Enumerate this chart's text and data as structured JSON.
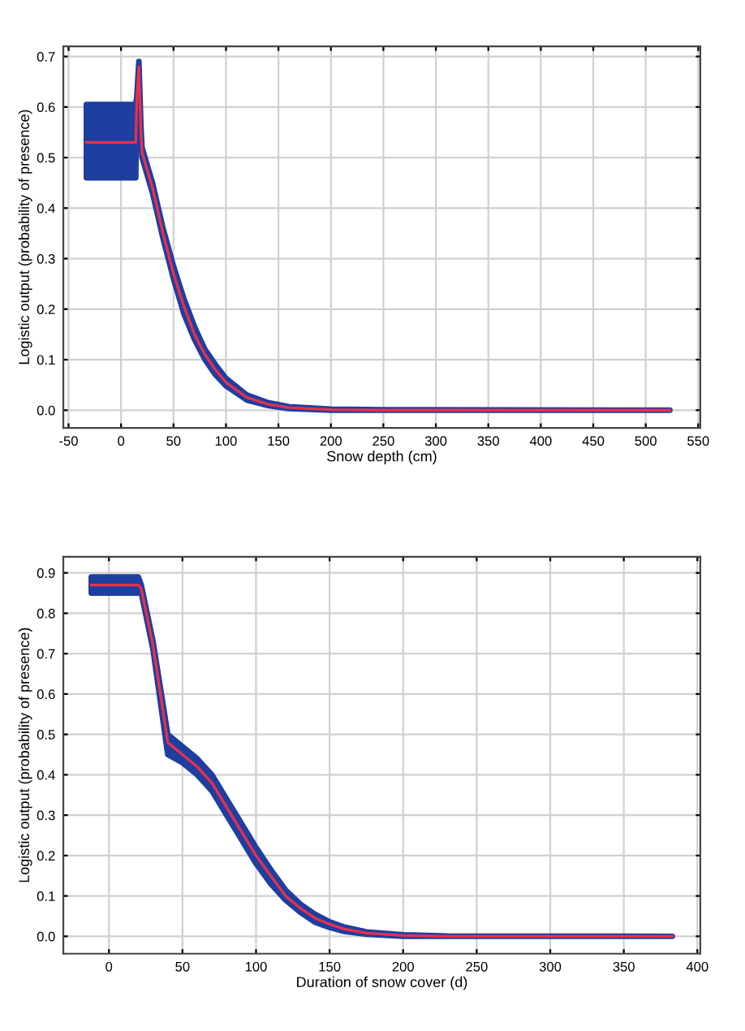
{
  "chart_data": [
    {
      "type": "line",
      "xlabel": "Snow depth (cm)",
      "ylabel": "Logistic output (probability of presence)",
      "xlim": [
        -55,
        552
      ],
      "ylim": [
        -0.035,
        0.72
      ],
      "xticks": [
        -50,
        0,
        50,
        100,
        150,
        200,
        250,
        300,
        350,
        400,
        450,
        500,
        550
      ],
      "yticks": [
        {
          "value": 0,
          "label": "0.0"
        },
        0.1,
        0.2,
        0.3,
        0.4,
        0.5,
        0.6,
        0.7
      ],
      "grid": true,
      "series": [
        {
          "color": "#e8304a",
          "x": [
            -33,
            14,
            15,
            17,
            19,
            20,
            30,
            40,
            50,
            60,
            70,
            80,
            90,
            100,
            120,
            140,
            160,
            200,
            250,
            523
          ],
          "values": [
            0.53,
            0.53,
            0.61,
            0.68,
            0.55,
            0.51,
            0.44,
            0.35,
            0.27,
            0.205,
            0.15,
            0.11,
            0.08,
            0.055,
            0.025,
            0.012,
            0.005,
            0.001,
            0,
            0
          ],
          "lower": [
            0.46,
            0.46,
            0.6,
            0.66,
            0.54,
            0.5,
            0.43,
            0.34,
            0.26,
            0.19,
            0.14,
            0.1,
            0.07,
            0.048,
            0.02,
            0.009,
            0.003,
            0,
            0,
            0
          ],
          "upper": [
            0.605,
            0.605,
            0.62,
            0.69,
            0.56,
            0.52,
            0.45,
            0.36,
            0.285,
            0.22,
            0.165,
            0.12,
            0.09,
            0.063,
            0.03,
            0.015,
            0.007,
            0.002,
            0.001,
            0
          ]
        }
      ]
    },
    {
      "type": "line",
      "xlabel": "Duration of snow cover (d)",
      "ylabel": "Logistic output (probability of presence)",
      "xlim": [
        -31,
        402
      ],
      "ylim": [
        -0.043,
        0.94
      ],
      "xticks": [
        0,
        50,
        100,
        150,
        200,
        250,
        300,
        350,
        400
      ],
      "yticks": [
        {
          "value": 0,
          "label": "0.0"
        },
        0.1,
        0.2,
        0.3,
        0.4,
        0.5,
        0.6,
        0.7,
        0.8,
        0.9
      ],
      "grid": true,
      "series": [
        {
          "color": "#e8304a",
          "x": [
            -12,
            20,
            22,
            30,
            40,
            50,
            60,
            70,
            80,
            90,
            100,
            110,
            120,
            130,
            140,
            150,
            160,
            175,
            200,
            230,
            383
          ],
          "values": [
            0.87,
            0.87,
            0.86,
            0.72,
            0.48,
            0.45,
            0.42,
            0.38,
            0.32,
            0.26,
            0.2,
            0.15,
            0.1,
            0.07,
            0.045,
            0.03,
            0.018,
            0.008,
            0.002,
            0,
            0
          ],
          "lower": [
            0.85,
            0.85,
            0.85,
            0.71,
            0.45,
            0.43,
            0.4,
            0.36,
            0.3,
            0.24,
            0.18,
            0.13,
            0.09,
            0.06,
            0.035,
            0.022,
            0.012,
            0.005,
            0,
            0,
            0
          ],
          "upper": [
            0.89,
            0.89,
            0.87,
            0.73,
            0.5,
            0.47,
            0.44,
            0.4,
            0.34,
            0.28,
            0.22,
            0.165,
            0.115,
            0.08,
            0.055,
            0.036,
            0.023,
            0.011,
            0.004,
            0.001,
            0
          ]
        }
      ]
    }
  ]
}
